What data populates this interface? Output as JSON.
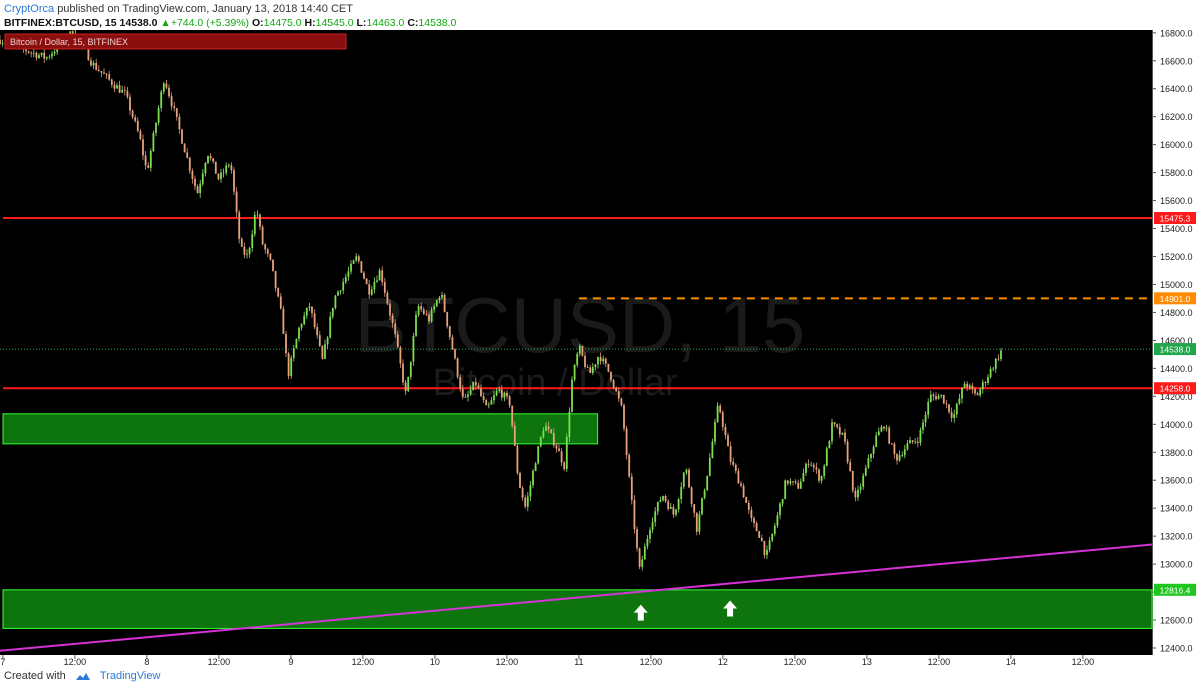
{
  "header": {
    "author": "CryptOrca",
    "published": "published on TradingView.com, January 13, 2018 14:40 CET",
    "symbol": "BITFINEX:BTCUSD, 15",
    "last": "14538.0",
    "change": "+744.0 (+5.39%)",
    "open_label": "O:",
    "open": "14475.0",
    "high_label": "H:",
    "high": "14545.0",
    "low_label": "L:",
    "low": "14463.0",
    "close_label": "C:",
    "close": "14538.0"
  },
  "footer": {
    "created": "Created with",
    "brand": "TradingView"
  },
  "chart_data": {
    "type": "candlestick",
    "title": "Bitcoin / Dollar, 15, BITFINEX",
    "watermark": {
      "symbol": "BTCUSD, 15",
      "name": "Bitcoin / Dollar"
    },
    "ylim": [
      12350,
      16820
    ],
    "y_ticks": [
      12400,
      12600,
      12800,
      13000,
      13200,
      13400,
      13600,
      13800,
      14000,
      14200,
      14400,
      14600,
      14800,
      15000,
      15200,
      15400,
      15600,
      15800,
      16000,
      16200,
      16400,
      16600,
      16800
    ],
    "x_ticks": [
      "7",
      "12:00",
      "8",
      "12:00",
      "9",
      "12:00",
      "10",
      "12:00",
      "11",
      "12:00",
      "12",
      "12:00",
      "13",
      "12:00",
      "14",
      "12:00"
    ],
    "x_range_days": [
      6.98,
      14.98
    ],
    "price_path": [
      [
        6.98,
        16750
      ],
      [
        7.15,
        16680
      ],
      [
        7.3,
        16620
      ],
      [
        7.5,
        16820
      ],
      [
        7.62,
        16580
      ],
      [
        7.75,
        16450
      ],
      [
        7.85,
        16360
      ],
      [
        7.95,
        16050
      ],
      [
        8.0,
        15800
      ],
      [
        8.12,
        16480
      ],
      [
        8.2,
        16200
      ],
      [
        8.28,
        15900
      ],
      [
        8.35,
        15650
      ],
      [
        8.42,
        15950
      ],
      [
        8.5,
        15750
      ],
      [
        8.58,
        15880
      ],
      [
        8.65,
        15250
      ],
      [
        8.7,
        15200
      ],
      [
        8.76,
        15550
      ],
      [
        8.8,
        15300
      ],
      [
        8.86,
        15150
      ],
      [
        8.94,
        14750
      ],
      [
        8.98,
        14350
      ],
      [
        9.06,
        14700
      ],
      [
        9.13,
        14850
      ],
      [
        9.22,
        14450
      ],
      [
        9.3,
        14900
      ],
      [
        9.38,
        15050
      ],
      [
        9.46,
        15200
      ],
      [
        9.54,
        14950
      ],
      [
        9.62,
        15100
      ],
      [
        9.72,
        14650
      ],
      [
        9.8,
        14200
      ],
      [
        9.88,
        14850
      ],
      [
        9.96,
        14750
      ],
      [
        10.04,
        14950
      ],
      [
        10.12,
        14550
      ],
      [
        10.2,
        14150
      ],
      [
        10.28,
        14300
      ],
      [
        10.36,
        14100
      ],
      [
        10.44,
        14250
      ],
      [
        10.52,
        14150
      ],
      [
        10.58,
        13600
      ],
      [
        10.63,
        13400
      ],
      [
        10.7,
        13750
      ],
      [
        10.76,
        14000
      ],
      [
        10.84,
        13850
      ],
      [
        10.9,
        13700
      ],
      [
        10.95,
        14300
      ],
      [
        11.0,
        14550
      ],
      [
        11.07,
        14350
      ],
      [
        11.14,
        14500
      ],
      [
        11.22,
        14350
      ],
      [
        11.3,
        14100
      ],
      [
        11.36,
        13500
      ],
      [
        11.42,
        12950
      ],
      [
        11.5,
        13300
      ],
      [
        11.58,
        13500
      ],
      [
        11.66,
        13350
      ],
      [
        11.74,
        13700
      ],
      [
        11.82,
        13250
      ],
      [
        11.9,
        13700
      ],
      [
        11.97,
        14150
      ],
      [
        12.05,
        13750
      ],
      [
        12.13,
        13550
      ],
      [
        12.2,
        13300
      ],
      [
        12.26,
        13200
      ],
      [
        12.3,
        13050
      ],
      [
        12.38,
        13350
      ],
      [
        12.44,
        13600
      ],
      [
        12.52,
        13550
      ],
      [
        12.6,
        13750
      ],
      [
        12.68,
        13600
      ],
      [
        12.76,
        14000
      ],
      [
        12.84,
        13900
      ],
      [
        12.92,
        13450
      ],
      [
        13.0,
        13700
      ],
      [
        13.06,
        13900
      ],
      [
        13.12,
        14000
      ],
      [
        13.2,
        13750
      ],
      [
        13.28,
        13850
      ],
      [
        13.36,
        13900
      ],
      [
        13.44,
        14200
      ],
      [
        13.52,
        14200
      ],
      [
        13.6,
        14050
      ],
      [
        13.68,
        14300
      ],
      [
        13.76,
        14200
      ],
      [
        13.84,
        14350
      ],
      [
        13.94,
        14538
      ]
    ],
    "levels": [
      {
        "type": "resistance",
        "price": 15475.3,
        "label": "15475.3",
        "color": "#ff1a1a"
      },
      {
        "type": "dashed",
        "price": 14901.0,
        "label": "14901.0",
        "color": "#ff8c00"
      },
      {
        "type": "last",
        "price": 14538.0,
        "label": "14538.0",
        "color": "#21a64b"
      },
      {
        "type": "resistance",
        "price": 14258.0,
        "label": "14258.0",
        "color": "#ff1a1a"
      },
      {
        "type": "support_zone",
        "price": 12816.4,
        "label": "12816.4",
        "color": "#22dd22"
      }
    ],
    "zones": [
      {
        "y1": 14075,
        "y2": 13860,
        "x_end_day": 11.13,
        "color": "#118811"
      },
      {
        "y1": 12816,
        "y2": 12540,
        "x_end_day": 14.98,
        "color": "#118811"
      }
    ],
    "trendline": {
      "from": [
        6.98,
        12380
      ],
      "to": [
        14.98,
        13140
      ],
      "color": "#d633d6"
    },
    "arrows": [
      {
        "day": 11.43,
        "price": 12710
      },
      {
        "day": 12.05,
        "price": 12740
      }
    ]
  }
}
